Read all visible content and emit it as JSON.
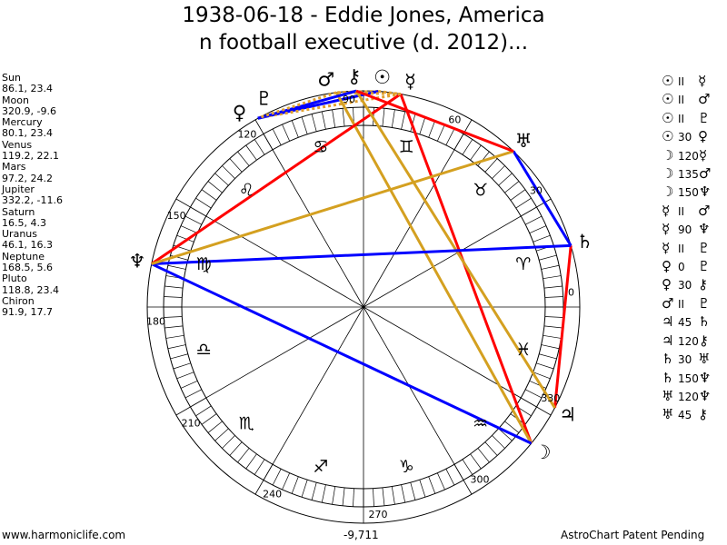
{
  "chart_data": {
    "type": "astrology-wheel",
    "title_lines": [
      "1938-06-18 - Eddie Jones, America",
      "n football executive (d. 2012)..."
    ],
    "degree_labels": [
      "0",
      "30",
      "60",
      "90",
      "120",
      "150",
      "180",
      "210",
      "240",
      "270",
      "300",
      "330"
    ],
    "signs": [
      "♈",
      "♉",
      "♊",
      "♋",
      "♌",
      "♍",
      "♎",
      "♏",
      "♐",
      "♑",
      "♒",
      "♓"
    ],
    "planets": [
      {
        "name": "Sun",
        "glyph": "☉",
        "lon": 86.1,
        "lat": 23.4,
        "text": "86.1, 23.4"
      },
      {
        "name": "Moon",
        "glyph": "☽",
        "lon": 320.9,
        "lat": -9.6,
        "text": "320.9, -9.6"
      },
      {
        "name": "Mercury",
        "glyph": "☿",
        "lon": 80.1,
        "lat": 23.4,
        "text": "80.1, 23.4"
      },
      {
        "name": "Venus",
        "glyph": "♀",
        "lon": 119.2,
        "lat": 22.1,
        "text": "119.2, 22.1"
      },
      {
        "name": "Mars",
        "glyph": "♂",
        "lon": 97.2,
        "lat": 24.2,
        "text": "97.2, 24.2"
      },
      {
        "name": "Jupiter",
        "glyph": "♃",
        "lon": 332.2,
        "lat": -11.6,
        "text": "332.2, -11.6"
      },
      {
        "name": "Saturn",
        "glyph": "♄",
        "lon": 16.5,
        "lat": 4.3,
        "text": "16.5, 4.3"
      },
      {
        "name": "Uranus",
        "glyph": "♅",
        "lon": 46.1,
        "lat": 16.3,
        "text": "46.1, 16.3"
      },
      {
        "name": "Neptune",
        "glyph": "♆",
        "lon": 168.5,
        "lat": 5.6,
        "text": "168.5, 5.6"
      },
      {
        "name": "Pluto",
        "glyph": "♇",
        "lon": 118.8,
        "lat": 23.4,
        "text": "118.8, 23.4"
      },
      {
        "name": "Chiron",
        "glyph": "⚷",
        "lon": 91.9,
        "lat": 17.7,
        "text": "91.9, 17.7"
      }
    ],
    "aspects": [
      {
        "p1": 0,
        "p2": 2,
        "aspect": "II",
        "color": "#e0a030",
        "style": "dotted"
      },
      {
        "p1": 0,
        "p2": 4,
        "aspect": "II",
        "color": "#e0a030",
        "style": "dotted"
      },
      {
        "p1": 0,
        "p2": 9,
        "aspect": "II",
        "color": "#e0a030",
        "style": "dotted"
      },
      {
        "p1": 0,
        "p2": 3,
        "aspect": "30",
        "color": "#0000ff",
        "style": "solid"
      },
      {
        "p1": 1,
        "p2": 2,
        "aspect": "120",
        "color": "#ff0000",
        "style": "solid"
      },
      {
        "p1": 1,
        "p2": 4,
        "aspect": "135",
        "color": "#d4a020",
        "style": "solid"
      },
      {
        "p1": 1,
        "p2": 8,
        "aspect": "150",
        "color": "#0000ff",
        "style": "solid"
      },
      {
        "p1": 2,
        "p2": 4,
        "aspect": "II",
        "color": "#e0a030",
        "style": "dotted"
      },
      {
        "p1": 2,
        "p2": 8,
        "aspect": "90",
        "color": "#ff0000",
        "style": "solid"
      },
      {
        "p1": 2,
        "p2": 9,
        "aspect": "II",
        "color": "#e0a030",
        "style": "dotted"
      },
      {
        "p1": 3,
        "p2": 9,
        "aspect": "0",
        "color": "#0000ff",
        "style": "solid"
      },
      {
        "p1": 3,
        "p2": 10,
        "aspect": "30",
        "color": "#0000ff",
        "style": "solid"
      },
      {
        "p1": 4,
        "p2": 9,
        "aspect": "II",
        "color": "#e0a030",
        "style": "dotted"
      },
      {
        "p1": 5,
        "p2": 6,
        "aspect": "45",
        "color": "#ff0000",
        "style": "solid"
      },
      {
        "p1": 5,
        "p2": 10,
        "aspect": "120",
        "color": "#d4a020",
        "style": "solid"
      },
      {
        "p1": 6,
        "p2": 7,
        "aspect": "30",
        "color": "#0000ff",
        "style": "solid"
      },
      {
        "p1": 6,
        "p2": 8,
        "aspect": "150",
        "color": "#0000ff",
        "style": "solid"
      },
      {
        "p1": 7,
        "p2": 8,
        "aspect": "120",
        "color": "#d4a020",
        "style": "solid"
      },
      {
        "p1": 7,
        "p2": 10,
        "aspect": "45",
        "color": "#ff0000",
        "style": "solid"
      }
    ]
  },
  "footer": {
    "site": "www.harmoniclife.com",
    "score": "-9,711",
    "notice": "AstroChart Patent Pending"
  }
}
